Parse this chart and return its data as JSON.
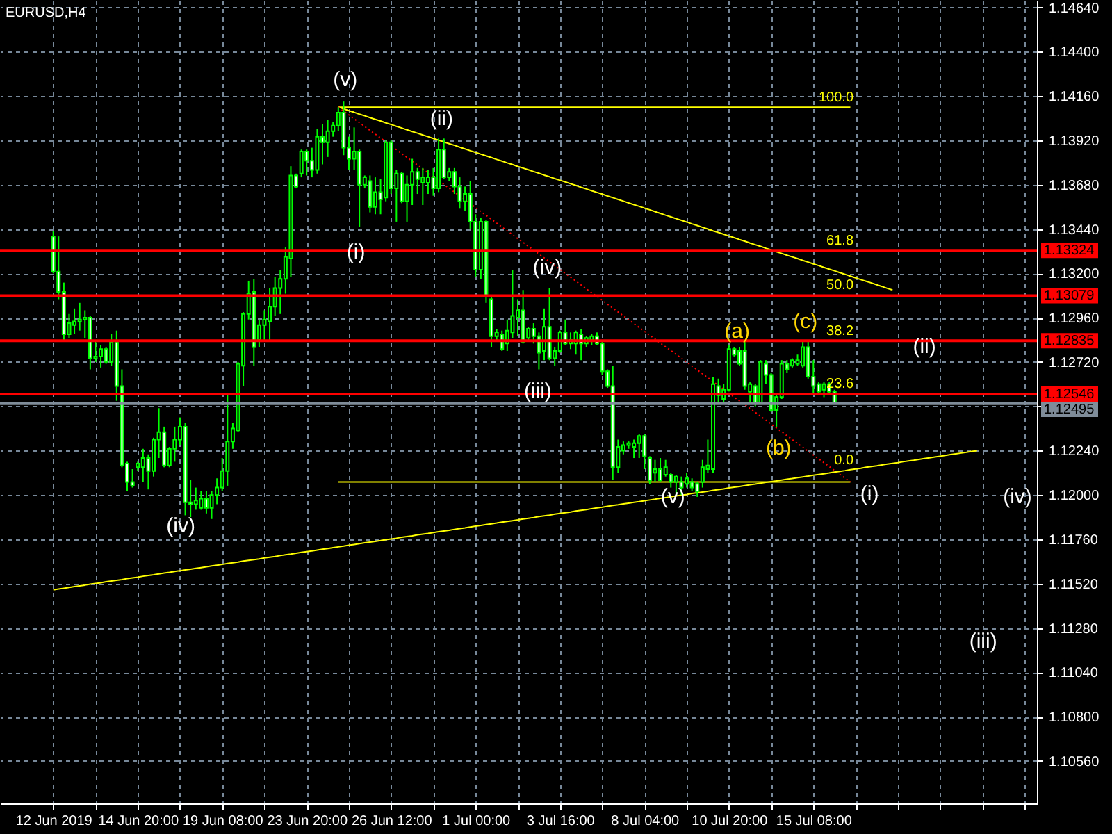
{
  "chart_data": {
    "type": "candlestick",
    "title": "EURUSD,H4",
    "color": "#00ff00",
    "categories": [
      "12 Jun 2019",
      null,
      null,
      null,
      null,
      null,
      null,
      null,
      null,
      null,
      null,
      null,
      null,
      null,
      null,
      null,
      "14 Jun 20:00",
      null,
      null,
      null,
      null,
      null,
      null,
      null,
      null,
      null,
      null,
      null,
      null,
      null,
      null,
      null,
      "19 Jun 08:00",
      null,
      null,
      null,
      null,
      null,
      null,
      null,
      null,
      null,
      null,
      null,
      null,
      null,
      null,
      null,
      "23 Jun 20:00",
      null,
      null,
      null,
      null,
      null,
      null,
      null,
      null,
      null,
      null,
      null,
      null,
      null,
      null,
      null,
      "26 Jun 12:00",
      null,
      null,
      null,
      null,
      null,
      null,
      null,
      null,
      null,
      null,
      null,
      null,
      null,
      null,
      null,
      "1 Jul 00:00",
      null,
      null,
      null,
      null,
      null,
      null,
      null,
      null,
      null,
      null,
      null,
      null,
      null,
      null,
      null,
      "3 Jul 16:00",
      null,
      null,
      null,
      null,
      null,
      null,
      null,
      null,
      null,
      null,
      null,
      null,
      null,
      null,
      null,
      "8 Jul 04:00",
      null,
      null,
      null,
      null,
      null,
      null,
      null,
      null,
      null,
      null,
      null,
      null,
      null,
      null,
      null,
      "10 Jul 20:00",
      null,
      null,
      null,
      null,
      null,
      null,
      null,
      null,
      null,
      null,
      null,
      null,
      null,
      null,
      null,
      "15 Jul 08:00",
      null,
      null,
      null,
      null,
      null,
      null,
      null,
      null,
      null,
      null,
      null,
      null,
      null,
      null,
      null,
      null,
      null,
      null,
      null,
      null,
      null,
      null,
      null,
      null,
      null,
      null,
      null,
      null,
      null,
      null,
      null,
      null,
      null,
      null,
      null,
      null,
      null,
      null,
      null,
      null
    ],
    "ohlc": [
      [
        1.134,
        1.1343,
        1.132,
        1.1321
      ],
      [
        1.1321,
        1.134,
        1.1306,
        1.131
      ],
      [
        1.131,
        1.1315,
        1.1283,
        1.1287
      ],
      [
        1.1287,
        1.1298,
        1.1285,
        1.1293
      ],
      [
        1.1292,
        1.1301,
        1.1287,
        1.1294
      ],
      [
        1.1294,
        1.1304,
        1.1289,
        1.1295
      ],
      [
        1.1295,
        1.13,
        1.1285,
        1.1296
      ],
      [
        1.1296,
        1.1297,
        1.1268,
        1.1274
      ],
      [
        1.1274,
        1.1283,
        1.1272,
        1.1275
      ],
      [
        1.1275,
        1.1281,
        1.1269,
        1.1279
      ],
      [
        1.1279,
        1.128,
        1.1271,
        1.1272
      ],
      [
        1.1272,
        1.1287,
        1.127,
        1.1283
      ],
      [
        1.1283,
        1.1289,
        1.1251,
        1.1259
      ],
      [
        1.1259,
        1.1268,
        1.1215,
        1.1216
      ],
      [
        1.1217,
        1.1218,
        1.1202,
        1.1207
      ],
      [
        1.1207,
        1.1214,
        1.1204,
        1.1205
      ],
      [
        1.1215,
        1.1218,
        1.1213,
        1.1217
      ],
      [
        1.1215,
        1.1225,
        1.1207,
        1.122
      ],
      [
        1.122,
        1.1222,
        1.1203,
        1.1213
      ],
      [
        1.1213,
        1.1231,
        1.121,
        1.123
      ],
      [
        1.123,
        1.1247,
        1.122,
        1.1234
      ],
      [
        1.1234,
        1.1237,
        1.1215,
        1.1216
      ],
      [
        1.1216,
        1.1226,
        1.1215,
        1.1225
      ],
      [
        1.1225,
        1.1237,
        1.1218,
        1.123
      ],
      [
        1.123,
        1.1242,
        1.1227,
        1.1237
      ],
      [
        1.1237,
        1.1239,
        1.1189,
        1.1196
      ],
      [
        1.1196,
        1.1208,
        1.1188,
        1.1195
      ],
      [
        1.1195,
        1.1204,
        1.1192,
        1.1197
      ],
      [
        1.1193,
        1.1202,
        1.1192,
        1.1198
      ],
      [
        1.1198,
        1.1202,
        1.119,
        1.1193
      ],
      [
        1.1193,
        1.1202,
        1.1187,
        1.12
      ],
      [
        1.12,
        1.1209,
        1.1195,
        1.1204
      ],
      [
        1.1204,
        1.122,
        1.1202,
        1.1213
      ],
      [
        1.1213,
        1.1254,
        1.1205,
        1.1229
      ],
      [
        1.1229,
        1.1239,
        1.1225,
        1.1236
      ],
      [
        1.1235,
        1.1272,
        1.1234,
        1.1271
      ],
      [
        1.127,
        1.1299,
        1.1259,
        1.1298
      ],
      [
        1.1298,
        1.1316,
        1.1295,
        1.1309
      ],
      [
        1.131,
        1.1317,
        1.127,
        1.128
      ],
      [
        1.1284,
        1.1295,
        1.128,
        1.1292
      ],
      [
        1.1292,
        1.13,
        1.1284,
        1.1295
      ],
      [
        1.1294,
        1.1312,
        1.1283,
        1.1302
      ],
      [
        1.1302,
        1.1318,
        1.1297,
        1.1312
      ],
      [
        1.1312,
        1.1322,
        1.1298,
        1.1317
      ],
      [
        1.1317,
        1.1334,
        1.1309,
        1.1329
      ],
      [
        1.1328,
        1.1378,
        1.1318,
        1.1373
      ],
      [
        1.1373,
        1.1374,
        1.1366,
        1.1367
      ],
      [
        1.1374,
        1.1387,
        1.1372,
        1.1386
      ],
      [
        1.1386,
        1.1387,
        1.1373,
        1.1381
      ],
      [
        1.1381,
        1.1388,
        1.1372,
        1.1376
      ],
      [
        1.1376,
        1.1398,
        1.1374,
        1.1394
      ],
      [
        1.1394,
        1.1401,
        1.1379,
        1.1391
      ],
      [
        1.1391,
        1.1403,
        1.1383,
        1.1397
      ],
      [
        1.1397,
        1.1402,
        1.1394,
        1.14
      ],
      [
        1.14,
        1.141,
        1.1397,
        1.1407
      ],
      [
        1.1407,
        1.1413,
        1.1384,
        1.1388
      ],
      [
        1.1388,
        1.1394,
        1.1376,
        1.1382
      ],
      [
        1.1382,
        1.1399,
        1.1376,
        1.1386
      ],
      [
        1.1386,
        1.1387,
        1.1345,
        1.1368
      ],
      [
        1.1368,
        1.1373,
        1.1366,
        1.1372
      ],
      [
        1.137,
        1.1373,
        1.1353,
        1.1356
      ],
      [
        1.1356,
        1.1372,
        1.1352,
        1.1364
      ],
      [
        1.1364,
        1.1371,
        1.1352,
        1.136
      ],
      [
        1.1361,
        1.1392,
        1.1359,
        1.1391
      ],
      [
        1.1391,
        1.1392,
        1.1363,
        1.1366
      ],
      [
        1.1366,
        1.1376,
        1.1348,
        1.1374
      ],
      [
        1.1374,
        1.1375,
        1.1358,
        1.1359
      ],
      [
        1.1359,
        1.1373,
        1.1348,
        1.1368
      ],
      [
        1.1368,
        1.1382,
        1.1357,
        1.1375
      ],
      [
        1.1375,
        1.1377,
        1.1363,
        1.1371
      ],
      [
        1.1369,
        1.1377,
        1.1357,
        1.1372
      ],
      [
        1.1369,
        1.1376,
        1.1363,
        1.1372
      ],
      [
        1.1372,
        1.1377,
        1.1362,
        1.1366
      ],
      [
        1.1366,
        1.1393,
        1.1364,
        1.1387
      ],
      [
        1.1387,
        1.1393,
        1.1371,
        1.1372
      ],
      [
        1.1372,
        1.1377,
        1.137,
        1.1375
      ],
      [
        1.1375,
        1.1377,
        1.1363,
        1.1367
      ],
      [
        1.1367,
        1.1372,
        1.1355,
        1.1359
      ],
      [
        1.1359,
        1.1367,
        1.1354,
        1.1363
      ],
      [
        1.1363,
        1.137,
        1.1344,
        1.1348
      ],
      [
        1.1348,
        1.1352,
        1.1318,
        1.1322
      ],
      [
        1.1322,
        1.135,
        1.1317,
        1.1348
      ],
      [
        1.1348,
        1.1349,
        1.1304,
        1.1308
      ],
      [
        1.1306,
        1.1308,
        1.128,
        1.1286
      ],
      [
        1.1286,
        1.129,
        1.1284,
        1.1288
      ],
      [
        1.1287,
        1.1289,
        1.1278,
        1.1279
      ],
      [
        1.1282,
        1.1295,
        1.1278,
        1.1289
      ],
      [
        1.1288,
        1.1322,
        1.1285,
        1.1297
      ],
      [
        1.1296,
        1.1306,
        1.1286,
        1.13
      ],
      [
        1.13,
        1.1311,
        1.1282,
        1.1283
      ],
      [
        1.1285,
        1.1291,
        1.1283,
        1.129
      ],
      [
        1.129,
        1.1293,
        1.1282,
        1.1286
      ],
      [
        1.1286,
        1.1288,
        1.1268,
        1.1277
      ],
      [
        1.1278,
        1.1301,
        1.1273,
        1.1291
      ],
      [
        1.1291,
        1.1312,
        1.1273,
        1.1274
      ],
      [
        1.1274,
        1.128,
        1.127,
        1.1278
      ],
      [
        1.1278,
        1.1289,
        1.1277,
        1.1288
      ],
      [
        1.1288,
        1.1295,
        1.1281,
        1.1282
      ],
      [
        1.1282,
        1.1288,
        1.1279,
        1.1284
      ],
      [
        1.1282,
        1.1289,
        1.1276,
        1.1288
      ],
      [
        1.1287,
        1.129,
        1.1273,
        1.1282
      ],
      [
        1.1282,
        1.1286,
        1.128,
        1.1285
      ],
      [
        1.1284,
        1.1287,
        1.1281,
        1.1286
      ],
      [
        1.1286,
        1.1288,
        1.1281,
        1.1282
      ],
      [
        1.1282,
        1.1283,
        1.1265,
        1.1267
      ],
      [
        1.1267,
        1.1268,
        1.1258,
        1.1259
      ],
      [
        1.1259,
        1.127,
        1.1208,
        1.1215
      ],
      [
        1.1215,
        1.123,
        1.1212,
        1.1226
      ],
      [
        1.1224,
        1.1229,
        1.1222,
        1.1227
      ],
      [
        1.1227,
        1.1229,
        1.1225,
        1.1228
      ],
      [
        1.1226,
        1.123,
        1.122,
        1.1228
      ],
      [
        1.1228,
        1.1233,
        1.122,
        1.1232
      ],
      [
        1.1232,
        1.1233,
        1.1214,
        1.1221
      ],
      [
        1.122,
        1.1221,
        1.1206,
        1.1208
      ],
      [
        1.1212,
        1.1219,
        1.1207,
        1.1214
      ],
      [
        1.1214,
        1.122,
        1.1207,
        1.1208
      ],
      [
        1.1211,
        1.1219,
        1.121,
        1.1215
      ],
      [
        1.1211,
        1.1212,
        1.1204,
        1.1207
      ],
      [
        1.1207,
        1.1211,
        1.12,
        1.121
      ],
      [
        1.1207,
        1.121,
        1.12,
        1.1204
      ],
      [
        1.1206,
        1.1212,
        1.1204,
        1.1209
      ],
      [
        1.1207,
        1.1209,
        1.1202,
        1.1204
      ],
      [
        1.1206,
        1.1207,
        1.1199,
        1.1202
      ],
      [
        1.1207,
        1.1219,
        1.1204,
        1.1215
      ],
      [
        1.1214,
        1.123,
        1.1212,
        1.1216
      ],
      [
        1.1214,
        1.1264,
        1.1212,
        1.126
      ],
      [
        1.1259,
        1.1263,
        1.1249,
        1.1254
      ],
      [
        1.1252,
        1.126,
        1.1249,
        1.1257
      ],
      [
        1.1257,
        1.1281,
        1.1256,
        1.1279
      ],
      [
        1.1279,
        1.128,
        1.1275,
        1.1276
      ],
      [
        1.1278,
        1.128,
        1.127,
        1.1271
      ],
      [
        1.1278,
        1.1283,
        1.1257,
        1.1259
      ],
      [
        1.1256,
        1.1261,
        1.1249,
        1.126
      ],
      [
        1.1259,
        1.126,
        1.1248,
        1.125
      ],
      [
        1.125,
        1.1273,
        1.1249,
        1.1272
      ],
      [
        1.1271,
        1.1273,
        1.126,
        1.1265
      ],
      [
        1.1265,
        1.1266,
        1.1245,
        1.1246
      ],
      [
        1.1246,
        1.1254,
        1.1237,
        1.1253
      ],
      [
        1.1253,
        1.1273,
        1.1252,
        1.1271
      ],
      [
        1.1271,
        1.1273,
        1.1266,
        1.1268
      ],
      [
        1.127,
        1.1274,
        1.1269,
        1.1273
      ],
      [
        1.1271,
        1.1276,
        1.127,
        1.1273
      ],
      [
        1.127,
        1.1283,
        1.1269,
        1.128
      ],
      [
        1.128,
        1.1284,
        1.1263,
        1.1264
      ],
      [
        1.1264,
        1.1273,
        1.1255,
        1.1259
      ],
      [
        1.126,
        1.1261,
        1.1254,
        1.1256
      ],
      [
        1.1257,
        1.1261,
        1.1253,
        1.126
      ],
      [
        1.126,
        1.1261,
        1.1254,
        1.1256
      ],
      [
        1.1256,
        1.1257,
        1.12495,
        1.12495
      ],
      null,
      null,
      null,
      null,
      null,
      null,
      null,
      null,
      null,
      null,
      null,
      null,
      null,
      null,
      null,
      null,
      null,
      null,
      null,
      null,
      null,
      null,
      null,
      null,
      null,
      null,
      null,
      null,
      null,
      null,
      null,
      null,
      null,
      null,
      null,
      null
    ],
    "ylim": [
      1.1033,
      1.1468
    ],
    "yticks": [
      {
        "value": 1.1464,
        "label": "1.14640"
      },
      {
        "value": 1.144,
        "label": "1.14400"
      },
      {
        "value": 1.1416,
        "label": "1.14160"
      },
      {
        "value": 1.1392,
        "label": "1.13920"
      },
      {
        "value": 1.1368,
        "label": "1.13680"
      },
      {
        "value": 1.1344,
        "label": "1.13440"
      },
      {
        "value": 1.132,
        "label": "1.13200"
      },
      {
        "value": 1.1296,
        "label": "1.12960"
      },
      {
        "value": 1.1272,
        "label": "1.12720"
      },
      {
        "value": 1.1248,
        "label": null
      },
      {
        "value": 1.1224,
        "label": "1.12240"
      },
      {
        "value": 1.12,
        "label": "1.12000"
      },
      {
        "value": 1.1176,
        "label": "1.11760"
      },
      {
        "value": 1.1152,
        "label": "1.11520"
      },
      {
        "value": 1.1128,
        "label": "1.11280"
      },
      {
        "value": 1.1104,
        "label": "1.11040"
      },
      {
        "value": 1.108,
        "label": "1.10800"
      },
      {
        "value": 1.1056,
        "label": "1.10560"
      }
    ],
    "grid": true,
    "series": [
      {
        "type": "line",
        "color": "#ffff00",
        "values": [
          null,
          null,
          null,
          null,
          null,
          null,
          null,
          null,
          null,
          null,
          null,
          null,
          null,
          null,
          null,
          null,
          null,
          null,
          null,
          null,
          null,
          null,
          null,
          null,
          null,
          null,
          null,
          null,
          null,
          null,
          null,
          null,
          null,
          null,
          null,
          null,
          null,
          null,
          null,
          null,
          null,
          null,
          null,
          null,
          null,
          null,
          null,
          null,
          null,
          null,
          null,
          null,
          null,
          null,
          1.141,
          1.141,
          1.141,
          1.141,
          1.141,
          1.141,
          1.141,
          1.141,
          1.141,
          1.141,
          1.141,
          1.141,
          1.141,
          1.141,
          1.141,
          1.141,
          1.141,
          1.141,
          1.141,
          1.141,
          1.141,
          1.141,
          1.141,
          1.141,
          1.141,
          1.141,
          1.141,
          1.141,
          1.141,
          1.141,
          1.141,
          1.141,
          1.141,
          1.141,
          1.141,
          1.141,
          1.141,
          1.141,
          1.141,
          1.141,
          1.141,
          1.141,
          1.141,
          1.141,
          1.141,
          1.141,
          1.141,
          1.141,
          1.141,
          1.141,
          1.141,
          1.141,
          1.141,
          1.141,
          1.141,
          1.141,
          1.141,
          1.141,
          1.141,
          1.141,
          1.141,
          1.141,
          1.141,
          1.141,
          1.141,
          1.141,
          1.141,
          1.141,
          1.141,
          1.141,
          1.141,
          1.141,
          1.141,
          1.141,
          1.141,
          1.141,
          1.141,
          1.141,
          1.141,
          1.141,
          1.141,
          1.141,
          1.141,
          1.141,
          1.141,
          1.141,
          1.141,
          1.141,
          1.141,
          1.141,
          1.141,
          1.141,
          1.141,
          1.141,
          1.141,
          1.141,
          1.141,
          1.141,
          null,
          null,
          null,
          null,
          null,
          null,
          null,
          null,
          null,
          null,
          null,
          null,
          null,
          null,
          null,
          null,
          null,
          null,
          null,
          null,
          null,
          null,
          null,
          null,
          null,
          null,
          null,
          null,
          null,
          null,
          null,
          null,
          null
        ]
      },
      {
        "type": "line",
        "color": "#ffff00",
        "values": [
          null,
          null,
          null,
          null,
          null,
          null,
          null,
          null,
          null,
          null,
          null,
          null,
          null,
          null,
          null,
          null,
          null,
          null,
          null,
          null,
          null,
          null,
          null,
          null,
          null,
          null,
          null,
          null,
          null,
          null,
          null,
          null,
          null,
          null,
          null,
          null,
          null,
          null,
          null,
          null,
          null,
          null,
          null,
          null,
          null,
          null,
          null,
          null,
          null,
          null,
          null,
          null,
          null,
          null,
          1.1207,
          1.1207,
          1.1207,
          1.1207,
          1.1207,
          1.1207,
          1.1207,
          1.1207,
          1.1207,
          1.1207,
          1.1207,
          1.1207,
          1.1207,
          1.1207,
          1.1207,
          1.1207,
          1.1207,
          1.1207,
          1.1207,
          1.1207,
          1.1207,
          1.1207,
          1.1207,
          1.1207,
          1.1207,
          1.1207,
          1.1207,
          1.1207,
          1.1207,
          1.1207,
          1.1207,
          1.1207,
          1.1207,
          1.1207,
          1.1207,
          1.1207,
          1.1207,
          1.1207,
          1.1207,
          1.1207,
          1.1207,
          1.1207,
          1.1207,
          1.1207,
          1.1207,
          1.1207,
          1.1207,
          1.1207,
          1.1207,
          1.1207,
          1.1207,
          1.1207,
          1.1207,
          1.1207,
          1.1207,
          1.1207,
          1.1207,
          1.1207,
          1.1207,
          1.1207,
          1.1207,
          1.1207,
          1.1207,
          1.1207,
          1.1207,
          1.1207,
          1.1207,
          1.1207,
          1.1207,
          1.1207,
          1.1207,
          1.1207,
          1.1207,
          1.1207,
          1.1207,
          1.1207,
          1.1207,
          1.1207,
          1.1207,
          1.1207,
          1.1207,
          1.1207,
          1.1207,
          1.1207,
          1.1207,
          1.1207,
          1.1207,
          1.1207,
          1.1207,
          1.1207,
          1.1207,
          1.1207,
          1.1207,
          1.1207,
          1.1207,
          1.1207,
          1.1207,
          1.1207,
          null,
          null,
          null,
          null,
          null,
          null,
          null,
          null,
          null,
          null,
          null,
          null,
          null,
          null,
          null,
          null,
          null,
          null,
          null,
          null,
          null,
          null,
          null,
          null,
          null,
          null,
          null,
          null,
          null,
          null,
          null,
          null,
          null
        ]
      },
      {
        "type": "line",
        "color": "#ffff00",
        "values": [
          null,
          null,
          null,
          null,
          null,
          null,
          null,
          null,
          null,
          null,
          null,
          null,
          null,
          null,
          null,
          null,
          null,
          null,
          null,
          null,
          null,
          null,
          null,
          null,
          null,
          null,
          null,
          null,
          null,
          null,
          null,
          null,
          null,
          null,
          null,
          null,
          null,
          null,
          null,
          null,
          null,
          null,
          null,
          null,
          null,
          null,
          null,
          null,
          null,
          null,
          null,
          null,
          null,
          null,
          1.141,
          1.14091,
          1.14081,
          1.14072,
          1.14062,
          1.14053,
          1.14043,
          1.14034,
          1.14025,
          1.14015,
          1.14006,
          1.13996,
          1.13987,
          1.13977,
          1.13968,
          1.13959,
          1.13949,
          1.1394,
          1.1393,
          1.13921,
          1.13911,
          1.13902,
          1.13893,
          1.13883,
          1.13874,
          1.13864,
          1.13855,
          1.13845,
          1.13836,
          1.13827,
          1.13817,
          1.13808,
          1.13798,
          1.13789,
          1.13779,
          1.1377,
          1.13761,
          1.13751,
          1.13742,
          1.13732,
          1.13723,
          1.13713,
          1.13704,
          1.13695,
          1.13685,
          1.13676,
          1.13666,
          1.13657,
          1.13647,
          1.13638,
          1.13629,
          1.13619,
          1.1361,
          1.136,
          1.13591,
          1.13581,
          1.13572,
          1.13563,
          1.13553,
          1.13544,
          1.13534,
          1.13525,
          1.13515,
          1.13506,
          1.13496,
          1.13487,
          1.13478,
          1.13468,
          1.13459,
          1.13449,
          1.1344,
          1.1343,
          1.13421,
          1.13412,
          1.13402,
          1.13393,
          1.13383,
          1.13374,
          1.13364,
          1.13355,
          1.13346,
          1.13336,
          1.13327,
          1.13317,
          1.13308,
          1.13298,
          1.13289,
          1.1328,
          1.1327,
          1.13261,
          1.13251,
          1.13242,
          1.13232,
          1.13223,
          1.13214,
          1.13204,
          1.13195,
          1.13185,
          1.13176,
          1.13166,
          1.13157,
          1.13148,
          1.13138,
          1.13129,
          1.13119,
          1.1311,
          null,
          null,
          null,
          null,
          null,
          null,
          null,
          null,
          null,
          null,
          null,
          null,
          null,
          null,
          null,
          null,
          null,
          null,
          null,
          null,
          null,
          null,
          null,
          null,
          null
        ]
      },
      {
        "type": "line",
        "color": "#ff0000",
        "line_style": "dotted",
        "values": [
          null,
          null,
          null,
          null,
          null,
          null,
          null,
          null,
          null,
          null,
          null,
          null,
          null,
          null,
          null,
          null,
          null,
          null,
          null,
          null,
          null,
          null,
          null,
          null,
          null,
          null,
          null,
          null,
          null,
          null,
          null,
          null,
          null,
          null,
          null,
          null,
          null,
          null,
          null,
          null,
          null,
          null,
          null,
          null,
          null,
          null,
          null,
          null,
          null,
          null,
          null,
          null,
          null,
          null,
          1.141,
          1.14079,
          1.14058,
          1.14037,
          1.14016,
          1.13995,
          1.13974,
          1.13954,
          1.13933,
          1.13912,
          1.13891,
          1.1387,
          1.13849,
          1.13828,
          1.13807,
          1.13786,
          1.13765,
          1.13744,
          1.13723,
          1.13702,
          1.13681,
          1.13661,
          1.1364,
          1.13619,
          1.13598,
          1.13577,
          1.13556,
          1.13535,
          1.13514,
          1.13493,
          1.13472,
          1.13451,
          1.1343,
          1.13409,
          1.13388,
          1.13368,
          1.13347,
          1.13326,
          1.13305,
          1.13284,
          1.13263,
          1.13242,
          1.13221,
          1.132,
          1.13179,
          1.13158,
          1.13137,
          1.13116,
          1.13095,
          1.13075,
          1.13054,
          1.13033,
          1.13012,
          1.12991,
          1.1297,
          1.12949,
          1.12928,
          1.12907,
          1.12886,
          1.12865,
          1.12844,
          1.12823,
          1.12802,
          1.12782,
          1.12761,
          1.1274,
          1.12719,
          1.12698,
          1.12677,
          1.12656,
          1.12635,
          1.12614,
          1.12593,
          1.12572,
          1.12551,
          1.1253,
          1.12509,
          1.12489,
          1.12468,
          1.12447,
          1.12426,
          1.12405,
          1.12384,
          1.12363,
          1.12342,
          1.12321,
          1.123,
          1.12279,
          1.12258,
          1.12237,
          1.12216,
          1.12196,
          1.12175,
          1.12154,
          1.12133,
          1.12112,
          1.12091,
          1.1207,
          null,
          null,
          null,
          null,
          null,
          null,
          null,
          null,
          null,
          null,
          null,
          null,
          null,
          null,
          null,
          null,
          null,
          null,
          null,
          null,
          null,
          null,
          null,
          null,
          null,
          null,
          null,
          null,
          null,
          null,
          null,
          null,
          null
        ]
      },
      {
        "type": "line",
        "color": "#ffff00",
        "values": [
          1.11486,
          1.11491,
          1.11495,
          1.11499,
          1.11504,
          1.11508,
          1.11512,
          1.11517,
          1.11521,
          1.11525,
          1.1153,
          1.11534,
          1.11538,
          1.11542,
          1.11547,
          1.11551,
          1.11555,
          1.1156,
          1.11564,
          1.11568,
          1.11573,
          1.11577,
          1.11581,
          1.11586,
          1.1159,
          1.11594,
          1.11598,
          1.11603,
          1.11607,
          1.11611,
          1.11616,
          1.1162,
          1.11624,
          1.11629,
          1.11633,
          1.11637,
          1.11642,
          1.11646,
          1.1165,
          1.11654,
          1.11659,
          1.11663,
          1.11667,
          1.11672,
          1.11676,
          1.1168,
          1.11685,
          1.11689,
          1.11693,
          1.11697,
          1.11702,
          1.11706,
          1.1171,
          1.11715,
          1.11719,
          1.11723,
          1.11728,
          1.11732,
          1.11736,
          1.11741,
          1.11745,
          1.11749,
          1.11753,
          1.11758,
          1.11762,
          1.11766,
          1.11771,
          1.11775,
          1.11779,
          1.11784,
          1.11788,
          1.11792,
          1.11797,
          1.11801,
          1.11805,
          1.11809,
          1.11814,
          1.11818,
          1.11822,
          1.11827,
          1.11831,
          1.11835,
          1.1184,
          1.11844,
          1.11848,
          1.11853,
          1.11857,
          1.11861,
          1.11865,
          1.1187,
          1.11874,
          1.11878,
          1.11883,
          1.11887,
          1.11891,
          1.11896,
          1.119,
          1.11904,
          1.11908,
          1.11913,
          1.11917,
          1.11921,
          1.11926,
          1.1193,
          1.11934,
          1.11939,
          1.11943,
          1.11947,
          1.11952,
          1.11956,
          1.1196,
          1.11964,
          1.11969,
          1.11973,
          1.11977,
          1.11982,
          1.11986,
          1.1199,
          1.11995,
          1.11999,
          1.12003,
          1.12008,
          1.12012,
          1.12016,
          1.1202,
          1.12025,
          1.12029,
          1.12033,
          1.12038,
          1.12042,
          1.12046,
          1.12051,
          1.12055,
          1.12059,
          1.12064,
          1.12068,
          1.12072,
          1.12076,
          1.12081,
          1.12085,
          1.12089,
          1.12094,
          1.12098,
          1.12102,
          1.12107,
          1.12111,
          1.12115,
          1.12119,
          1.12124,
          1.12128,
          1.12132,
          1.12137,
          1.12141,
          1.12145,
          1.1215,
          1.12154,
          1.12158,
          1.12163,
          1.12167,
          1.12171,
          1.12175,
          1.1218,
          1.12184,
          1.12188,
          1.12193,
          1.12197,
          1.12201,
          1.12206,
          1.1221,
          1.12214,
          1.12219,
          1.12223,
          1.12227,
          1.12231,
          1.12236,
          1.1224,
          null,
          null,
          null,
          null,
          null,
          null,
          null,
          null,
          null
        ]
      }
    ],
    "ref_lines": [
      {
        "axis": "y",
        "value": 1.13324,
        "label": "1.13324",
        "color": "#ff0000"
      },
      {
        "axis": "y",
        "value": 1.13079,
        "label": "1.13079",
        "color": "#ff0000"
      },
      {
        "axis": "y",
        "value": 1.12835,
        "label": "1.12835",
        "color": "#ff0000"
      },
      {
        "axis": "y",
        "value": 1.12546,
        "label": "1.12546",
        "color": "#ff0000"
      },
      {
        "axis": "y",
        "value": 1.12495,
        "label": "1.12495",
        "color": "#7f8c99"
      }
    ],
    "annotations": [
      "(v)",
      "(ii)",
      "(i)",
      "(iv)",
      "(iii)",
      "(iv)",
      "(v)",
      "(i)",
      "(ii)",
      "(iii)",
      "(iv)",
      "(a)",
      "(b)",
      "(c)",
      "100.0",
      "61.8",
      "50.0",
      "38.2",
      "23.6",
      "0.0"
    ]
  }
}
